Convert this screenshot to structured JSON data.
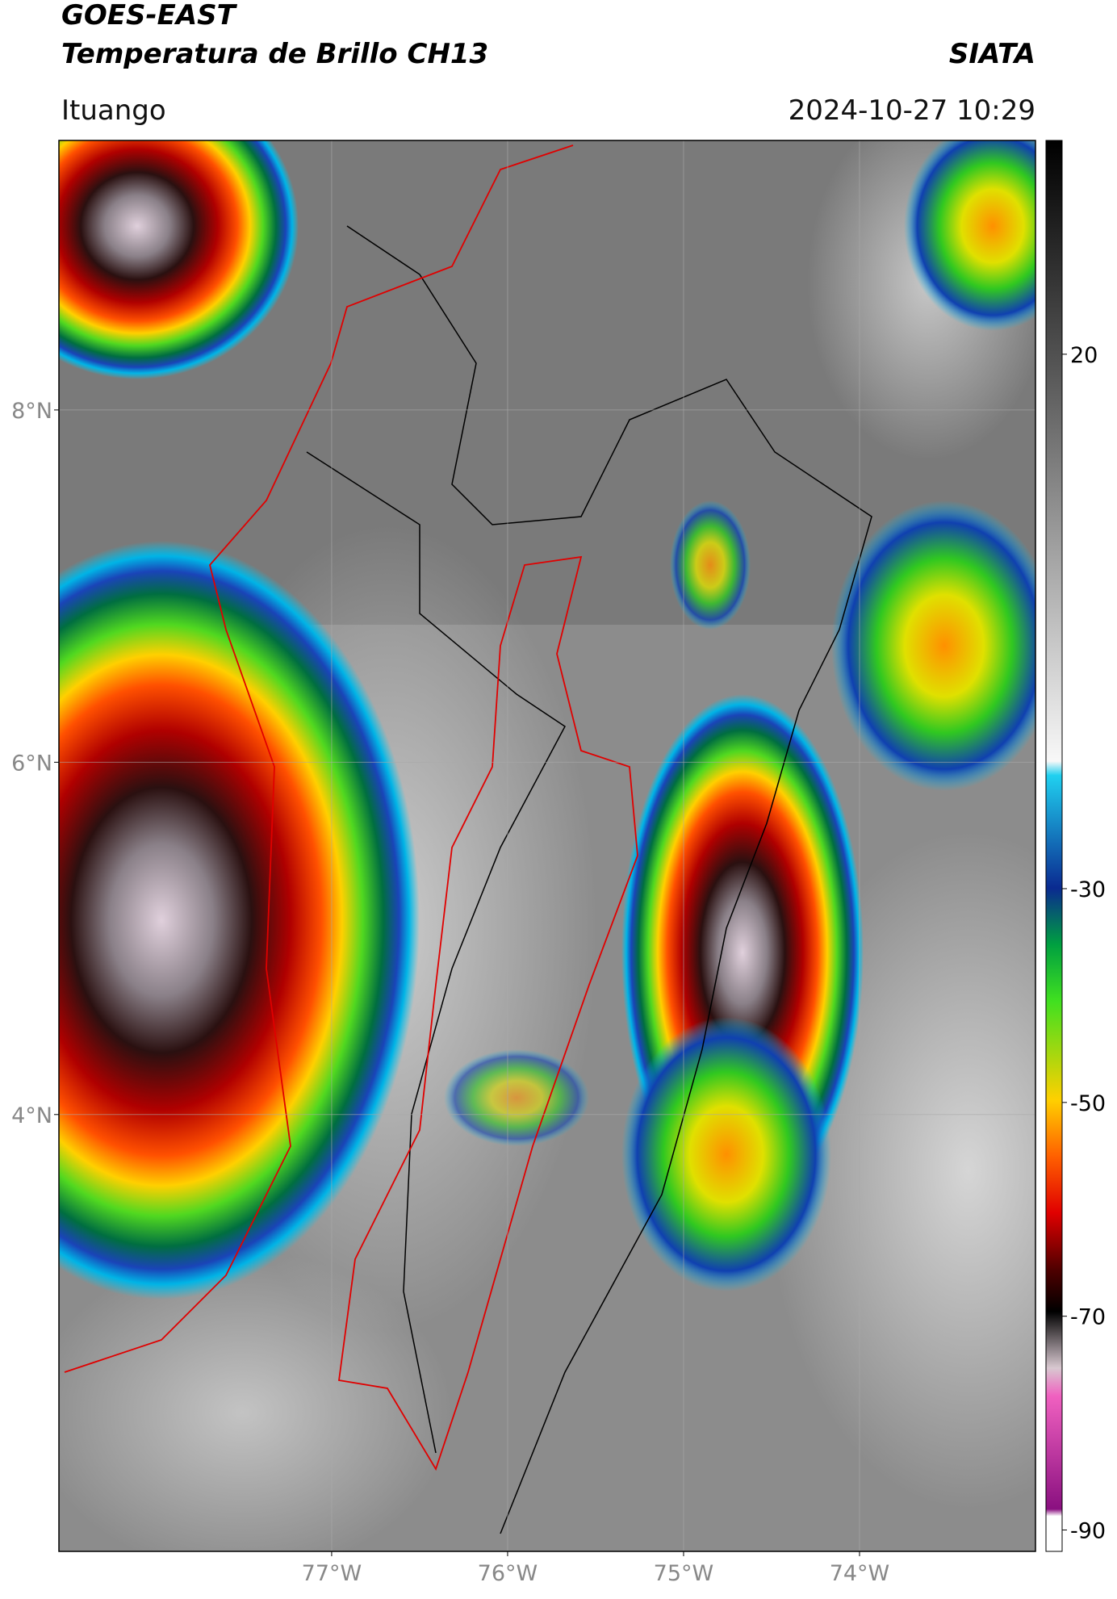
{
  "header": {
    "title": "GOES-EAST",
    "subtitle": "Temperatura de Brillo CH13",
    "brand": "SIATA",
    "location": "Ituango",
    "datetime": "2024-10-27 10:29"
  },
  "map": {
    "type": "map",
    "xlim": [
      -78.55,
      -73.0
    ],
    "ylim": [
      1.52,
      9.53
    ],
    "grid": true,
    "xticks": [
      {
        "value": -77,
        "label": "77°W"
      },
      {
        "value": -76,
        "label": "76°W"
      },
      {
        "value": -75,
        "label": "75°W"
      },
      {
        "value": -74,
        "label": "74°W"
      }
    ],
    "yticks": [
      {
        "value": 8,
        "label": "8°N"
      },
      {
        "value": 6,
        "label": "6°N"
      },
      {
        "value": 4,
        "label": "4°N"
      }
    ]
  },
  "colorbar": {
    "ylim": [
      -92,
      40
    ],
    "yticks": [
      20,
      -30,
      -50,
      -70,
      -90
    ]
  }
}
